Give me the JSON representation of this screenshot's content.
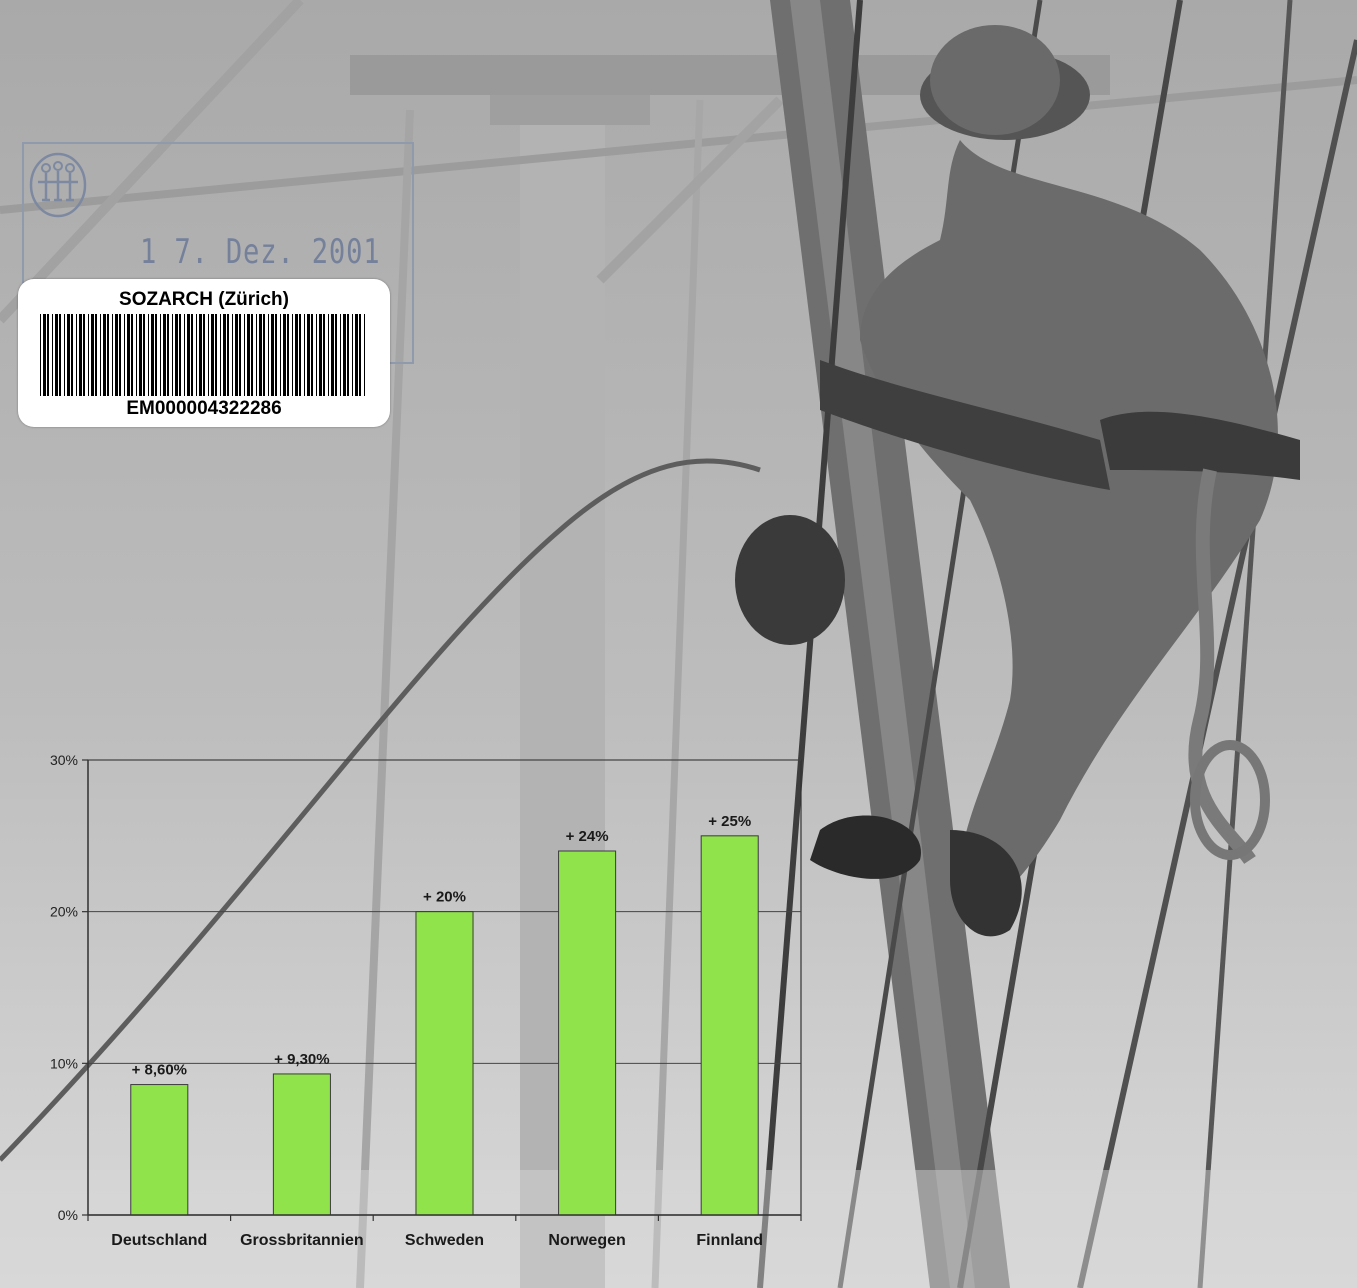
{
  "stamp": {
    "date_text": "1 7. Dez. 2001",
    "logo_icon": "archive-figures-logo"
  },
  "label": {
    "institution": "SOZARCH (Zürich)",
    "code": "EM000004322286",
    "barcode_icon": "barcode"
  },
  "colors": {
    "bar_fill": "#90e34a",
    "bar_stroke": "#3a3a3a",
    "axis": "#333333",
    "grid": "#444444",
    "stamp_ink": "#75819b"
  },
  "chart_data": {
    "type": "bar",
    "categories": [
      "Deutschland",
      "Grossbritannien",
      "Schweden",
      "Norwegen",
      "Finnland"
    ],
    "values": [
      8.6,
      9.3,
      20,
      24,
      25
    ],
    "data_labels": [
      "+ 8,60%",
      "+ 9,30%",
      "+ 20%",
      "+ 24%",
      "+ 25%"
    ],
    "y_ticks": [
      "0%",
      "10%",
      "20%",
      "30%"
    ],
    "ylim": [
      0,
      30
    ],
    "y_unit": "%",
    "grid": true,
    "legend": "none",
    "title": "",
    "xlabel": "",
    "ylabel": ""
  }
}
